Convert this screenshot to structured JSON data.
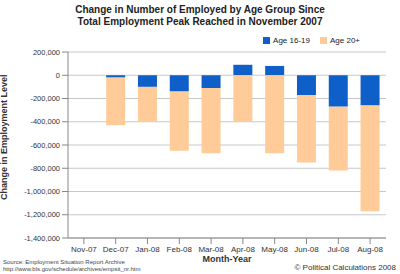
{
  "chart_data": {
    "type": "bar",
    "title": [
      "Change in Number of Employed by Age Group Since",
      "Total Employment Peak Reached in November 2007"
    ],
    "x_label": "Month-Year",
    "y_label": "Change in Employment Level",
    "categories": [
      "Nov-07",
      "Dec-07",
      "Jan-08",
      "Feb-08",
      "Mar-08",
      "Apr-08",
      "May-08",
      "Jun-08",
      "Jul-08",
      "Aug-08"
    ],
    "series": [
      {
        "name": "Age 16-19",
        "color": "#0f5fc8",
        "values": [
          0,
          -20000,
          -100000,
          -140000,
          -110000,
          90000,
          80000,
          -170000,
          -270000,
          -260000
        ]
      },
      {
        "name": "Age 20+",
        "color": "#ffcc99",
        "values": [
          0,
          -410000,
          -300000,
          -510000,
          -560000,
          -400000,
          -670000,
          -580000,
          -550000,
          -910000
        ]
      }
    ],
    "stacked": true,
    "ylim": [
      -1400000,
      200000
    ],
    "yticks": [
      {
        "value": 200000,
        "label": "200,000"
      },
      0,
      {
        "value": -200000,
        "label": "-200,000"
      },
      {
        "value": -400000,
        "label": "-400,000"
      },
      {
        "value": -600000,
        "label": "-600,000"
      },
      {
        "value": -800000,
        "label": "-800,000"
      },
      {
        "value": -1000000,
        "label": "-1,000,000"
      },
      {
        "value": -1200000,
        "label": "-1,200,000"
      },
      {
        "value": -1400000,
        "label": "-1,400,000"
      }
    ],
    "grid": true,
    "legend": "upper right",
    "annotations": [
      "Source: Employment Situation Report Archive",
      "http://www.bls.gov/schedule/archives/empsit_nr.htm",
      "© Political Calculations 2008"
    ]
  }
}
